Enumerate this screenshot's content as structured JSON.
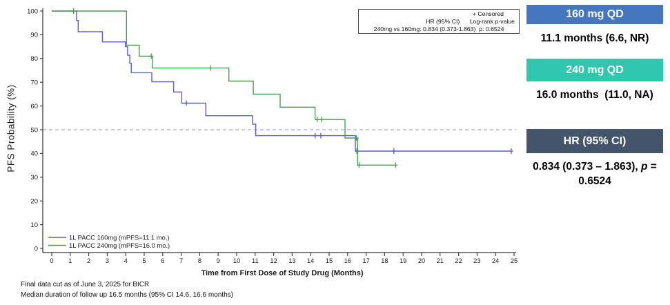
{
  "chart": {
    "y_axis_title": "PFS Probability (%)",
    "x_axis_title": "Time from First Dose of Study Drug (Months)",
    "stats_box": {
      "line1": "+ Censored",
      "line2": "HR (95% CI)      Log-rank p-value",
      "line3": "240mg vs 160mg: 0.834 (0.373-1.863)  p: 0.6524"
    }
  },
  "chart_data": {
    "type": "line",
    "subtype": "kaplan-meier-step",
    "title": "",
    "xlabel": "Time from First Dose of Study Drug (Months)",
    "ylabel": "PFS Probability (%)",
    "xlim": [
      0,
      25
    ],
    "ylim": [
      0,
      100
    ],
    "x_ticks": [
      0,
      1,
      2,
      3,
      4,
      5,
      6,
      7,
      8,
      9,
      10,
      11,
      12,
      13,
      14,
      15,
      16,
      17,
      18,
      19,
      20,
      21,
      22,
      23,
      24,
      25
    ],
    "y_ticks": [
      0,
      10,
      20,
      30,
      40,
      50,
      60,
      70,
      80,
      90,
      100
    ],
    "reference_line_y": 50,
    "reference_line_color": "#9a9a9a",
    "grid": false,
    "legend_position": "bottom-left-inside",
    "series": [
      {
        "name": "1L PACC 160mg (mPFS=11.1 mo.)",
        "color": "#5a5ade",
        "steps": [
          [
            0,
            100
          ],
          [
            1.34,
            100
          ],
          [
            1.34,
            96
          ],
          [
            1.43,
            96
          ],
          [
            1.43,
            91.3
          ],
          [
            2.74,
            91.3
          ],
          [
            2.74,
            87
          ],
          [
            3.98,
            87
          ],
          [
            3.98,
            85
          ],
          [
            4.1,
            85
          ],
          [
            4.1,
            81.4
          ],
          [
            4.22,
            81.4
          ],
          [
            4.22,
            78
          ],
          [
            4.3,
            78
          ],
          [
            4.3,
            74
          ],
          [
            5.41,
            74
          ],
          [
            5.41,
            70.2
          ],
          [
            6.59,
            70.2
          ],
          [
            6.59,
            65.9
          ],
          [
            7.03,
            65.9
          ],
          [
            7.03,
            61.2
          ],
          [
            8.33,
            61.2
          ],
          [
            8.33,
            55.9
          ],
          [
            10.86,
            55.9
          ],
          [
            10.86,
            52.3
          ],
          [
            11.03,
            52.3
          ],
          [
            11.03,
            47.5
          ],
          [
            16.42,
            47.5
          ],
          [
            16.42,
            41
          ],
          [
            24.85,
            41
          ]
        ],
        "censors": [
          [
            7.28,
            61.2
          ],
          [
            14.24,
            47.5
          ],
          [
            14.55,
            47.5
          ],
          [
            16.5,
            41
          ],
          [
            18.5,
            41
          ],
          [
            24.85,
            41
          ]
        ]
      },
      {
        "name": "1L PACC 240mg (mPFS=16.0 mo.)",
        "color": "#46a049",
        "steps": [
          [
            0,
            100
          ],
          [
            4.04,
            100
          ],
          [
            4.04,
            85.6
          ],
          [
            4.73,
            85.6
          ],
          [
            4.73,
            81
          ],
          [
            5.44,
            81
          ],
          [
            5.44,
            76
          ],
          [
            9.58,
            76
          ],
          [
            9.58,
            70.5
          ],
          [
            10.9,
            70.5
          ],
          [
            10.9,
            65
          ],
          [
            12.35,
            65
          ],
          [
            12.35,
            59.5
          ],
          [
            14.24,
            59.5
          ],
          [
            14.24,
            54.3
          ],
          [
            15.86,
            54.3
          ],
          [
            15.86,
            46.5
          ],
          [
            16.54,
            46.5
          ],
          [
            16.54,
            35.1
          ],
          [
            18.6,
            35.1
          ]
        ],
        "censors": [
          [
            1.18,
            100
          ],
          [
            5.38,
            81
          ],
          [
            8.58,
            76
          ],
          [
            14.35,
            54.3
          ],
          [
            14.6,
            54.3
          ],
          [
            16.48,
            46.5
          ],
          [
            16.62,
            35.1
          ],
          [
            18.6,
            35.1
          ]
        ]
      }
    ],
    "legend": [
      {
        "label": "1L PACC 160mg (mPFS=11.1 mo.)",
        "color": "#5a5ade"
      },
      {
        "label": "1L PACC 240mg (mPFS=16.0 mo.)",
        "color": "#46a049"
      }
    ]
  },
  "panels": {
    "arm160": {
      "banner": "160 mg QD",
      "banner_color": "#4677be",
      "value": "11.1 months (6.6, NR)"
    },
    "arm240": {
      "banner": "240 mg QD",
      "banner_color": "#2fc7ad",
      "value": "16.0 months  (11.0, NA)"
    },
    "hr": {
      "banner": "HR (95% CI)",
      "banner_color": "#44546a",
      "value_prefix": "0.834 (0.373 – 1.863), ",
      "p_symbol": "p",
      "value_suffix": "= 0.6524"
    }
  },
  "footnotes": {
    "line1": "Final data cut as of June 3, 2025 for BICR",
    "line2": "Median duration of follow up 16.5 months (95% CI 14.6, 16.6 months)"
  }
}
